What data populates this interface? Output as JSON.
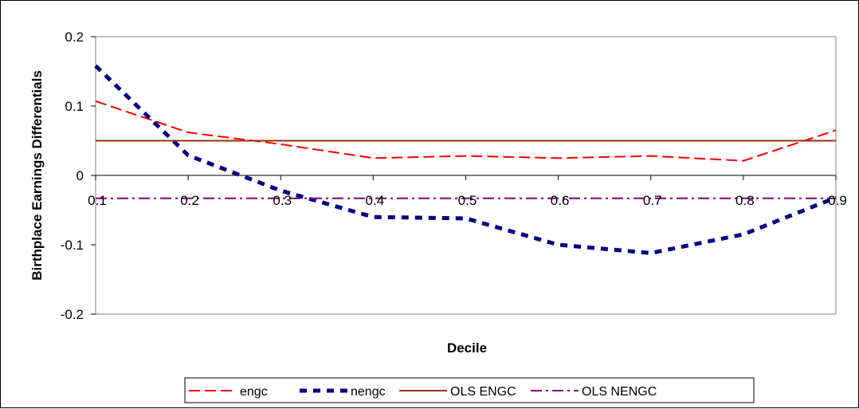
{
  "chart_data": {
    "type": "line",
    "title": "",
    "xlabel": "Decile",
    "ylabel": "Birthplace Earnings Differentials",
    "x": [
      0.1,
      0.2,
      0.3,
      0.4,
      0.5,
      0.6,
      0.7,
      0.8,
      0.9
    ],
    "x_tick_labels": [
      "0.1",
      "0.2",
      "0.3",
      "0.4",
      "0.5",
      "0.6",
      "0.7",
      "0.8",
      "0.9"
    ],
    "y_ticks": [
      0.2,
      0.1,
      0,
      -0.1,
      -0.2
    ],
    "y_tick_labels": [
      "0.2",
      "0.1",
      "0",
      "-0.1",
      "-0.2"
    ],
    "xlim": [
      0.1,
      0.9
    ],
    "ylim": [
      -0.2,
      0.2
    ],
    "grid": false,
    "legend_position": "bottom",
    "series": [
      {
        "name": "engc",
        "style": "dashed",
        "color": "#ff0000",
        "values": [
          0.107,
          0.062,
          0.045,
          0.025,
          0.028,
          0.025,
          0.028,
          0.021,
          0.065
        ]
      },
      {
        "name": "nengc",
        "style": "heavy-dashed",
        "color": "#000080",
        "values": [
          0.158,
          0.029,
          -0.022,
          -0.06,
          -0.062,
          -0.1,
          -0.112,
          -0.085,
          -0.032
        ]
      },
      {
        "name": "OLS ENGC",
        "style": "solid",
        "color": "#993300",
        "values": [
          0.05,
          0.05,
          0.05,
          0.05,
          0.05,
          0.05,
          0.05,
          0.05,
          0.05
        ]
      },
      {
        "name": "OLS NENGC",
        "style": "dash-dot",
        "color": "#800080",
        "values": [
          -0.033,
          -0.033,
          -0.033,
          -0.033,
          -0.033,
          -0.033,
          -0.033,
          -0.033,
          -0.033
        ]
      }
    ]
  }
}
